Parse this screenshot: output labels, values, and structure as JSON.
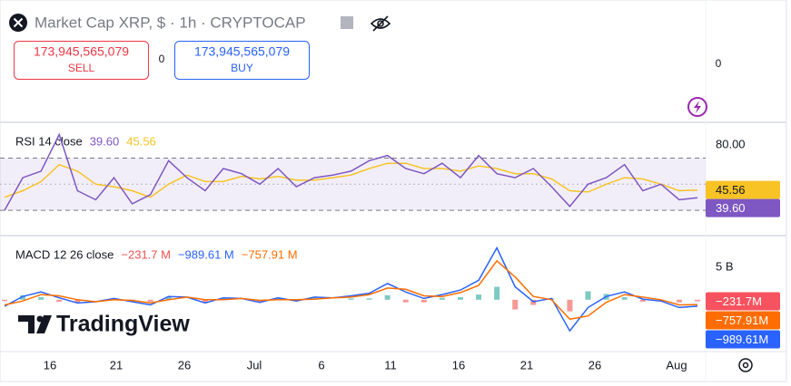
{
  "header": {
    "symbol_title": "Market Cap XRP, $ · 1h · CRYPTOCAP",
    "sell_price": "173,945,565,079",
    "sell": "SELL",
    "spread": "0",
    "buy_price": "173,945,565,079",
    "buy": "BUY"
  },
  "main_axis_label": "0",
  "brand": "TradingView",
  "x_axis": {
    "categories": [
      "16",
      "21",
      "26",
      "Jul",
      "6",
      "11",
      "16",
      "21",
      "26",
      "Aug"
    ]
  },
  "chart_data": [
    {
      "type": "line",
      "title": "RSI 14 close",
      "ylim": [
        12,
        96
      ],
      "yticks": [
        {
          "value": 80,
          "label": "80.00"
        }
      ],
      "band": [
        30,
        70
      ],
      "midline": 50,
      "series": [
        {
          "color": "#7e57c2",
          "label": "39.60",
          "values": [
            30,
            55,
            60,
            88,
            45,
            38,
            55,
            35,
            42,
            68,
            55,
            45,
            62,
            58,
            50,
            62,
            48,
            55,
            57,
            60,
            68,
            72,
            62,
            58,
            66,
            55,
            72,
            58,
            55,
            62,
            48,
            33,
            50,
            55,
            65,
            45,
            50,
            38,
            39.6
          ]
        },
        {
          "color": "#f7c325",
          "label": "45.56",
          "values": [
            40,
            45,
            52,
            65,
            60,
            50,
            48,
            45,
            40,
            50,
            57,
            52,
            52,
            56,
            54,
            56,
            53,
            53,
            55,
            57,
            62,
            66,
            66,
            62,
            62,
            60,
            64,
            62,
            58,
            58,
            54,
            45,
            44,
            50,
            55,
            54,
            50,
            45,
            45.56
          ]
        }
      ]
    },
    {
      "type": "macd",
      "title": "MACD 12 26 close",
      "ylim": [
        -7.7,
        9.6
      ],
      "yticks": [
        {
          "value": 5,
          "label": "5 B"
        }
      ],
      "series": [
        {
          "type": "bar",
          "color": "#ef5350",
          "positive_color": "#26a69a",
          "legend_label": "−231.7 M",
          "axis_label": "−231.7M",
          "values": [
            -0.2,
            0.7,
            0.4,
            -0.3,
            -0.5,
            0,
            0.2,
            -0.2,
            -0.3,
            0.5,
            0,
            -0.5,
            0.3,
            0,
            -0.3,
            0.3,
            -0.2,
            0.3,
            0,
            0.2,
            0.2,
            0.7,
            -0.4,
            -0.4,
            0.3,
            0.4,
            0.8,
            2,
            -1.5,
            -0.8,
            0.2,
            -1.8,
            1.3,
            0.9,
            0.4,
            -0.3,
            -0.2,
            -0.4,
            -0.2317
          ]
        },
        {
          "type": "line",
          "color": "#2962ff",
          "legend_label": "−989.61 M",
          "axis_label": "−989.61M",
          "values": [
            -1,
            0.5,
            1.2,
            0.3,
            -0.5,
            -0.3,
            0.2,
            -0.3,
            -0.8,
            0.5,
            0.4,
            -0.5,
            0.3,
            0.2,
            -0.4,
            0.3,
            -0.2,
            0.4,
            0.3,
            0.6,
            1.0,
            2.5,
            1.2,
            0.2,
            0.8,
            1.5,
            3,
            8,
            2,
            -0.3,
            0.2,
            -4.8,
            -1.2,
            0.5,
            1.2,
            0.1,
            -0.2,
            -1.2,
            -0.98961
          ]
        },
        {
          "type": "line",
          "color": "#ff6d00",
          "legend_label": "−757.91 M",
          "axis_label": "−757.91M",
          "values": [
            -0.8,
            -0.2,
            0.8,
            0.6,
            0,
            -0.3,
            0,
            -0.1,
            -0.5,
            0,
            0.4,
            0,
            0,
            0.2,
            -0.1,
            0,
            0,
            0.1,
            0.3,
            0.4,
            0.8,
            1.8,
            1.6,
            0.6,
            0.5,
            1.1,
            2.2,
            6,
            3.5,
            0.5,
            0,
            -3,
            -2.5,
            -0.4,
            0.8,
            0.4,
            0,
            -0.8,
            -0.75791
          ]
        }
      ]
    }
  ]
}
